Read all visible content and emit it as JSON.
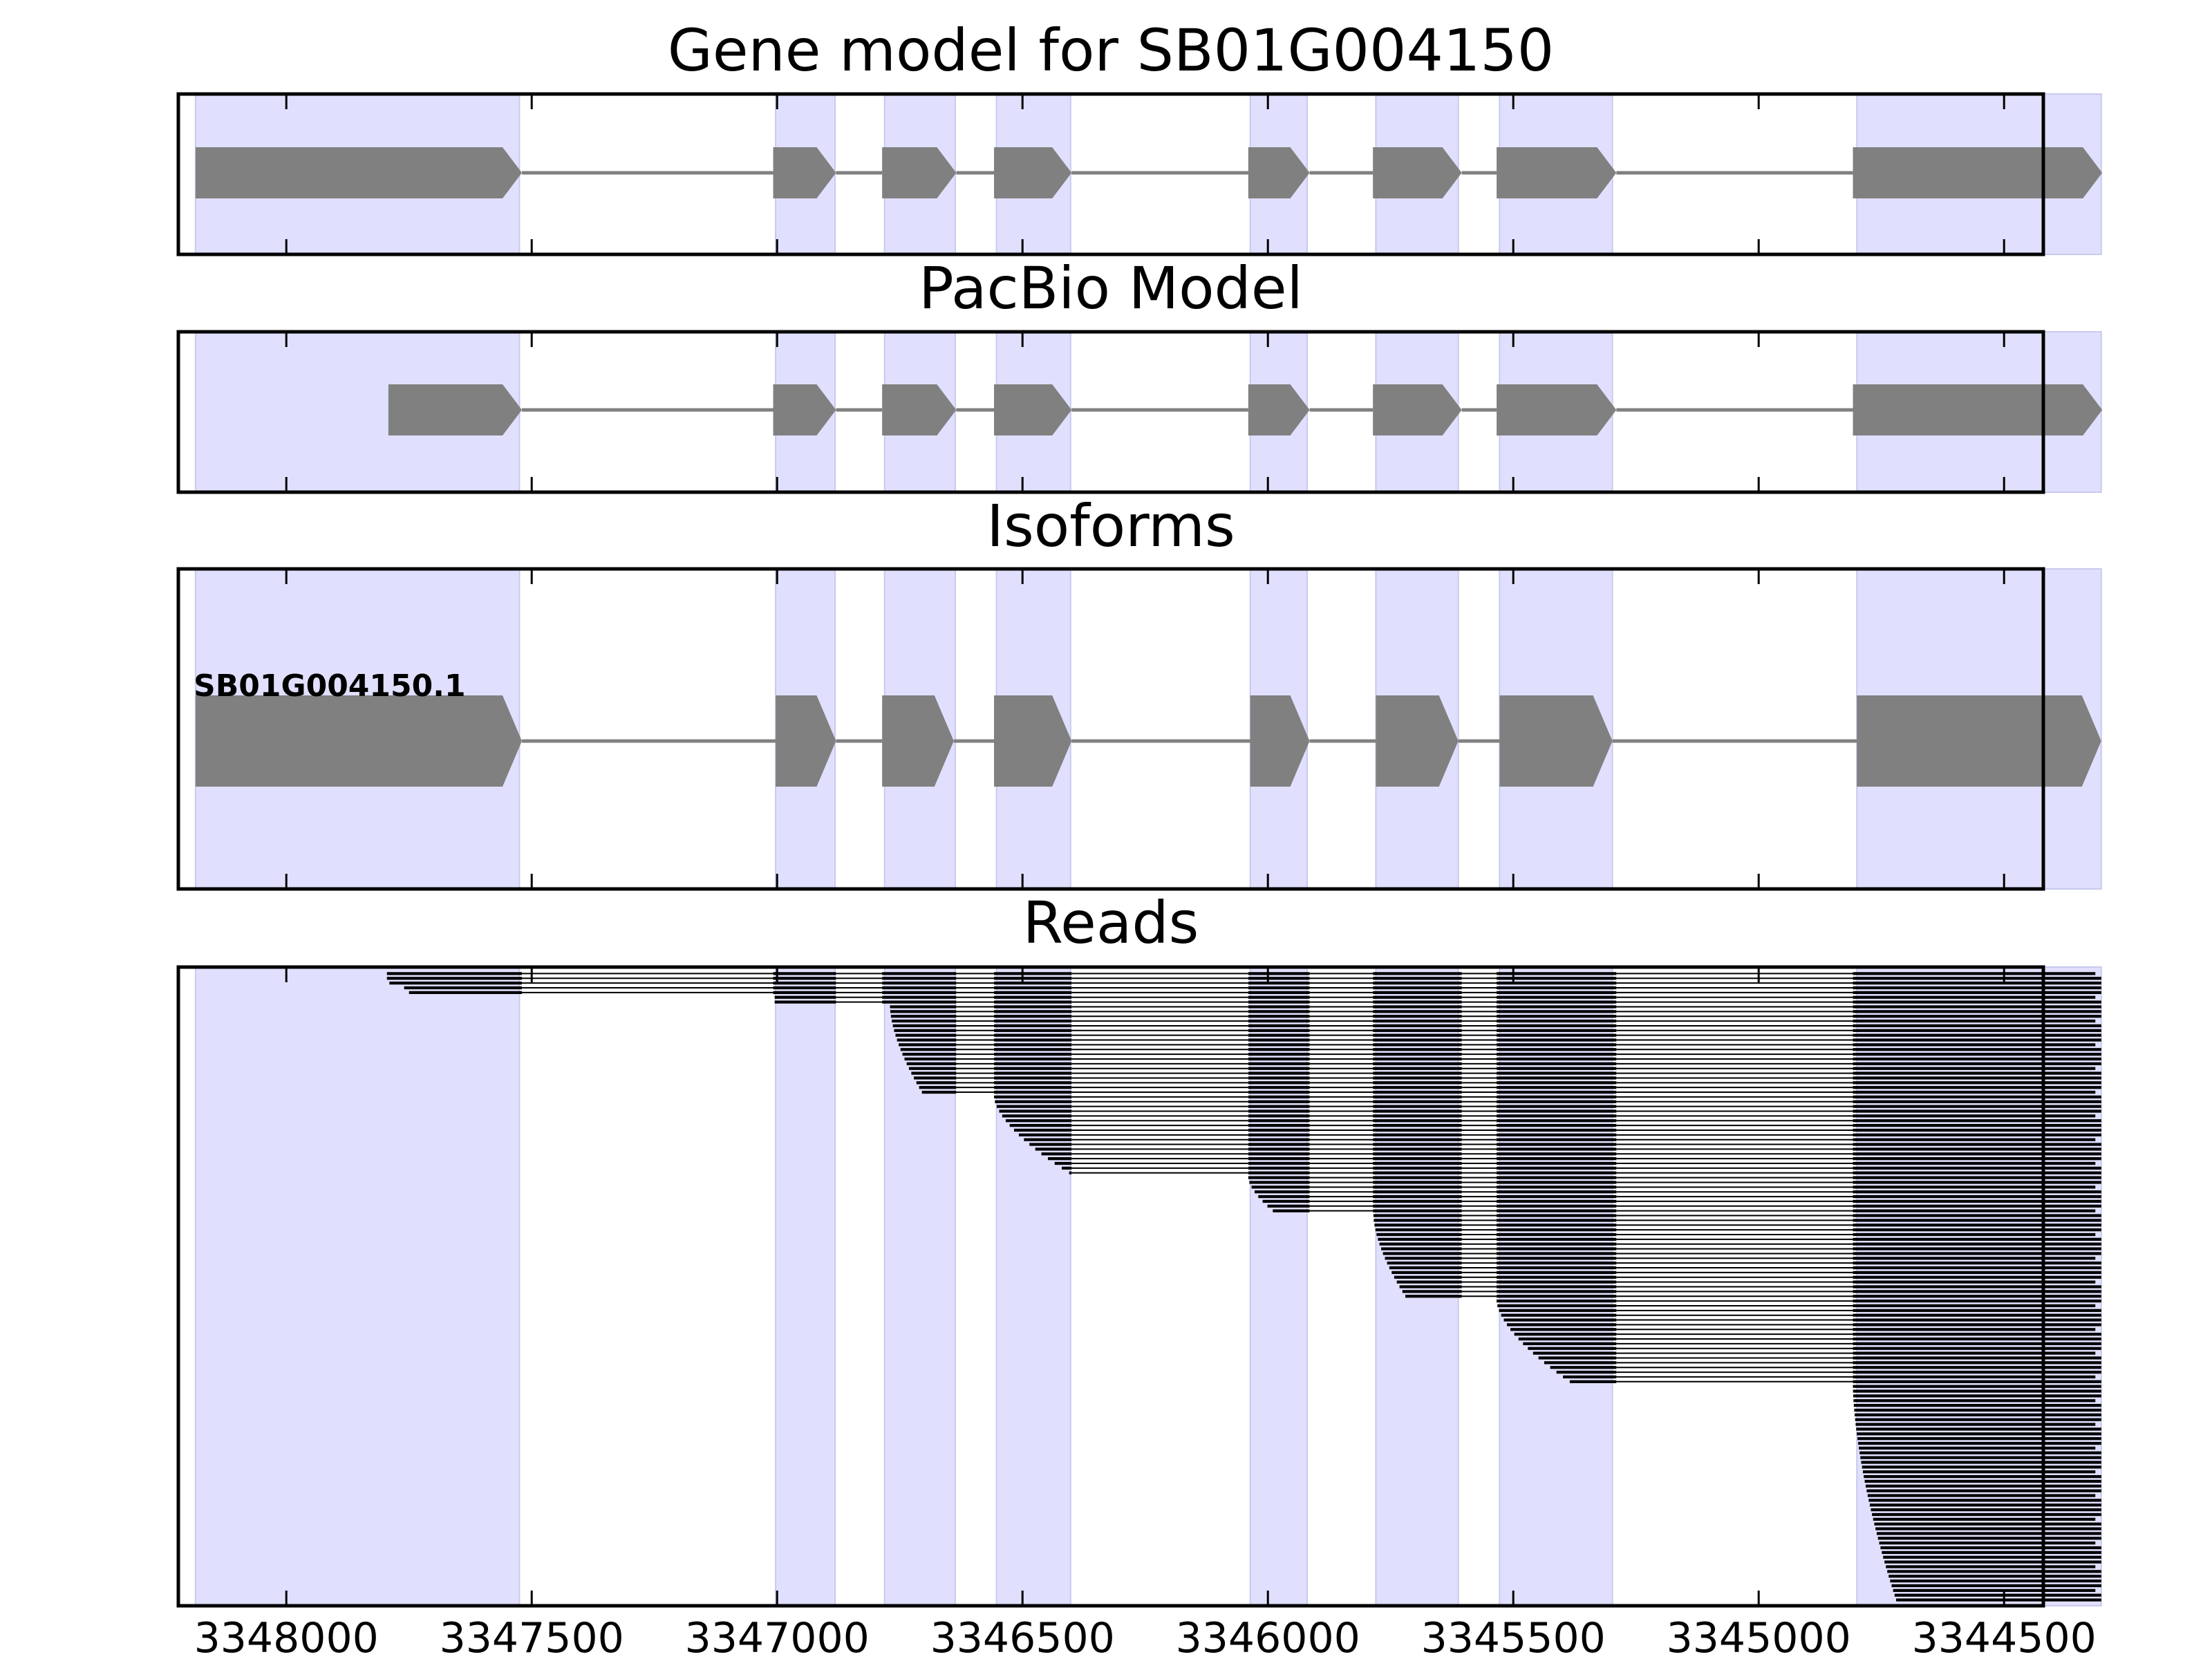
{
  "chart_data": {
    "type": "gene-track",
    "x_axis": {
      "range": [
        3348220,
        3344420
      ],
      "reversed": true,
      "ticks": [
        3348000,
        3347500,
        3347000,
        3346500,
        3346000,
        3345500,
        3345000,
        3344500
      ],
      "tick_labels": [
        "3348000",
        "3347500",
        "3347000",
        "3346500",
        "3346000",
        "3345500",
        "3345000",
        "3344500"
      ]
    },
    "highlight_color": "#e0e0fe",
    "feature_color": "#808080",
    "read_color": "#000000",
    "highlight_regions": [
      [
        3348185,
        3347525
      ],
      [
        3347003,
        3346882
      ],
      [
        3346781,
        3346637
      ],
      [
        3346553,
        3346402
      ],
      [
        3346036,
        3345920
      ],
      [
        3345780,
        3345612
      ],
      [
        3345528,
        3345298
      ],
      [
        3344800,
        3344302
      ]
    ],
    "panels": [
      {
        "title": "Gene model for SB01G004150",
        "strand": "-",
        "exons": [
          [
            3348185,
            3347520
          ],
          [
            3347008,
            3346880
          ],
          [
            3346786,
            3346635
          ],
          [
            3346558,
            3346400
          ],
          [
            3346040,
            3345915
          ],
          [
            3345786,
            3345605
          ],
          [
            3345534,
            3345290
          ],
          [
            3344808,
            3344300
          ]
        ]
      },
      {
        "title": "PacBio Model",
        "strand": "-",
        "exons": [
          [
            3347792,
            3347520
          ],
          [
            3347008,
            3346880
          ],
          [
            3346786,
            3346635
          ],
          [
            3346558,
            3346400
          ],
          [
            3346040,
            3345915
          ],
          [
            3345786,
            3345605
          ],
          [
            3345534,
            3345290
          ],
          [
            3344808,
            3344300
          ]
        ]
      },
      {
        "title": "Isoforms",
        "strand": "-",
        "isoforms": [
          {
            "name": "SB01G004150.1",
            "exons": [
              [
                3348185,
                3347520
              ],
              [
                3347003,
                3346880
              ],
              [
                3346786,
                3346640
              ],
              [
                3346558,
                3346400
              ],
              [
                3346036,
                3345915
              ],
              [
                3345780,
                3345612
              ],
              [
                3345528,
                3345298
              ],
              [
                3344800,
                3344302
              ]
            ]
          }
        ]
      },
      {
        "title": "Reads",
        "read_count": 133,
        "read_start_exon_profile": [
          {
            "exon": 1,
            "count": 5,
            "starts": [
              3347795,
              3347795,
              3347790,
              3347760,
              3347750
            ]
          },
          {
            "exon": 2,
            "count": 2,
            "starts": [
              3347005,
              3347005
            ]
          },
          {
            "exon": 3,
            "count": 19,
            "starts_range": [
              3346770,
              3346705
            ]
          },
          {
            "exon": 4,
            "count": 17,
            "starts_range": [
              3346558,
              3346405
            ]
          },
          {
            "exon": 5,
            "count": 8,
            "starts_range": [
              3346040,
              3345990
            ]
          },
          {
            "exon": 6,
            "count": 18,
            "starts_range": [
              3345785,
              3345720
            ]
          },
          {
            "exon": 7,
            "count": 18,
            "starts_range": [
              3345534,
              3345385
            ]
          },
          {
            "exon": 8,
            "count": 46,
            "starts_range": [
              3344808,
              3344720
            ]
          }
        ],
        "read_end": 3344302
      }
    ]
  }
}
